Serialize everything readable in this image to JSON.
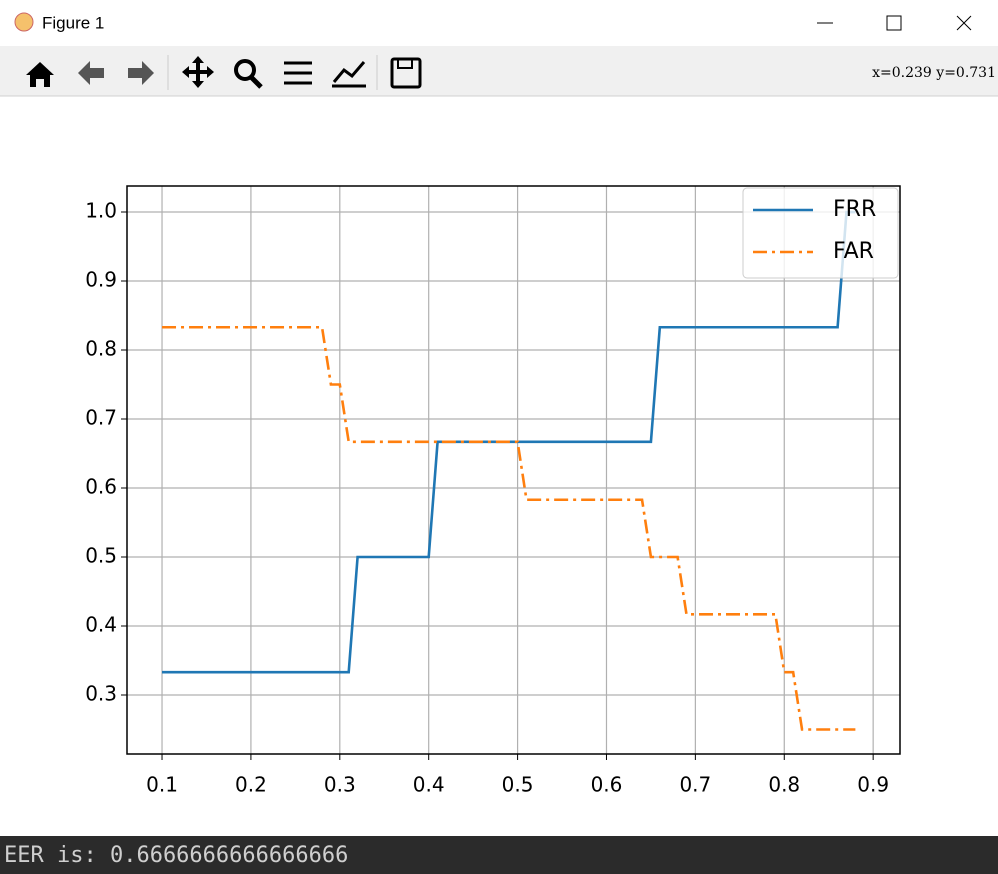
{
  "window": {
    "title": "Figure 1",
    "coordinates": "x=0.239 y=0.731",
    "console": "EER is:  0.6666666666666666"
  },
  "chart_data": {
    "type": "line",
    "x": [
      0.1,
      0.11,
      0.12,
      0.13,
      0.14,
      0.15,
      0.16,
      0.17,
      0.18,
      0.19,
      0.2,
      0.21,
      0.22,
      0.23,
      0.24,
      0.25,
      0.26,
      0.27,
      0.28,
      0.29,
      0.3,
      0.31,
      0.32,
      0.33,
      0.34,
      0.35,
      0.36,
      0.37,
      0.38,
      0.39,
      0.4,
      0.41,
      0.42,
      0.43,
      0.44,
      0.45,
      0.46,
      0.47,
      0.48,
      0.49,
      0.5,
      0.51,
      0.52,
      0.53,
      0.54,
      0.55,
      0.56,
      0.57,
      0.58,
      0.59,
      0.6,
      0.61,
      0.62,
      0.63,
      0.64,
      0.65,
      0.66,
      0.67,
      0.68,
      0.69,
      0.7,
      0.71,
      0.72,
      0.73,
      0.74,
      0.75,
      0.76,
      0.77,
      0.78,
      0.79,
      0.8,
      0.81,
      0.82,
      0.83,
      0.84,
      0.85,
      0.86,
      0.87,
      0.88
    ],
    "series": [
      {
        "name": "FRR",
        "color": "#1f77b4",
        "linestyle": "-",
        "values": [
          0.333,
          0.333,
          0.333,
          0.333,
          0.333,
          0.333,
          0.333,
          0.333,
          0.333,
          0.333,
          0.333,
          0.333,
          0.333,
          0.333,
          0.333,
          0.333,
          0.333,
          0.333,
          0.333,
          0.333,
          0.333,
          0.333,
          0.5,
          0.5,
          0.5,
          0.5,
          0.5,
          0.5,
          0.5,
          0.5,
          0.5,
          0.667,
          0.667,
          0.667,
          0.667,
          0.667,
          0.667,
          0.667,
          0.667,
          0.667,
          0.667,
          0.667,
          0.667,
          0.667,
          0.667,
          0.667,
          0.667,
          0.667,
          0.667,
          0.667,
          0.667,
          0.667,
          0.667,
          0.667,
          0.667,
          0.667,
          0.833,
          0.833,
          0.833,
          0.833,
          0.833,
          0.833,
          0.833,
          0.833,
          0.833,
          0.833,
          0.833,
          0.833,
          0.833,
          0.833,
          0.833,
          0.833,
          0.833,
          0.833,
          0.833,
          0.833,
          0.833,
          1,
          1
        ]
      },
      {
        "name": "FAR",
        "color": "#ff7f0e",
        "linestyle": "-.",
        "values": [
          0.833,
          0.833,
          0.833,
          0.833,
          0.833,
          0.833,
          0.833,
          0.833,
          0.833,
          0.833,
          0.833,
          0.833,
          0.833,
          0.833,
          0.833,
          0.833,
          0.833,
          0.833,
          0.833,
          0.75,
          0.75,
          0.667,
          0.667,
          0.667,
          0.667,
          0.667,
          0.667,
          0.667,
          0.667,
          0.667,
          0.667,
          0.667,
          0.667,
          0.667,
          0.667,
          0.667,
          0.667,
          0.667,
          0.667,
          0.667,
          0.667,
          0.583,
          0.583,
          0.583,
          0.583,
          0.583,
          0.583,
          0.583,
          0.583,
          0.583,
          0.583,
          0.583,
          0.583,
          0.583,
          0.583,
          0.5,
          0.5,
          0.5,
          0.5,
          0.417,
          0.417,
          0.417,
          0.417,
          0.417,
          0.417,
          0.417,
          0.417,
          0.417,
          0.417,
          0.417,
          0.333,
          0.333,
          0.25,
          0.25,
          0.25,
          0.25,
          0.25,
          0.25,
          0.25
        ]
      }
    ],
    "xlim": [
      0.0606,
      0.9302
    ],
    "ylim": [
      0.2145,
      1.0377
    ],
    "xticks": [
      0.1,
      0.2,
      0.3,
      0.4,
      0.5,
      0.6,
      0.7,
      0.8,
      0.9
    ],
    "yticks": [
      0.3,
      0.4,
      0.5,
      0.6,
      0.7,
      0.8,
      0.9,
      {
        "value": 1,
        "label": "1.0"
      }
    ],
    "grid": true,
    "legend": "upper right"
  }
}
